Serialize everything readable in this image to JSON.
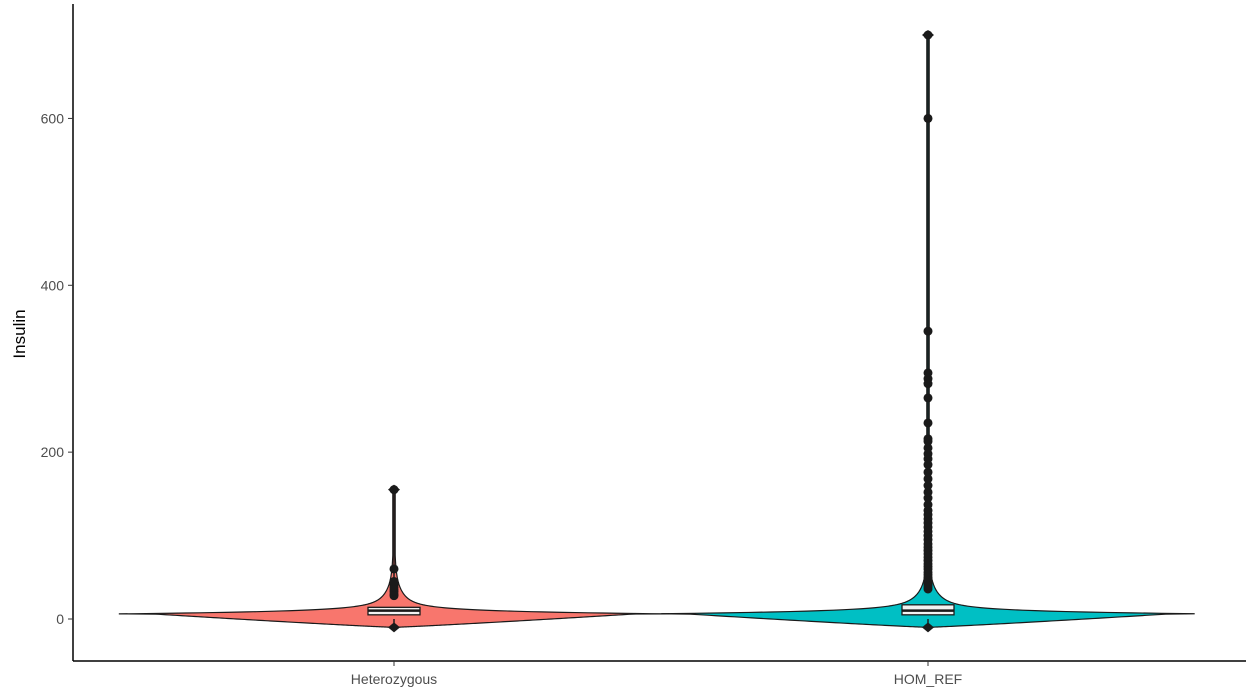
{
  "chart_data": {
    "type": "violin",
    "title": "",
    "xlabel": "",
    "ylabel": "Insulin",
    "ylim": [
      -50,
      700
    ],
    "yticks": [
      0,
      200,
      400,
      600
    ],
    "categories": [
      "Heterozygous",
      "HOM_REF"
    ],
    "colors": {
      "Heterozygous": "#F8766D",
      "HOM_REF": "#00BFC4"
    },
    "groups": [
      {
        "name": "Heterozygous",
        "box": {
          "min": 0,
          "q1": 5,
          "median": 10,
          "q3": 14,
          "max": 26
        },
        "violin_range": [
          -10,
          155
        ],
        "outliers": [
          28,
          30,
          33,
          35,
          38,
          41,
          43,
          45,
          60,
          155
        ]
      },
      {
        "name": "HOM_REF",
        "box": {
          "min": 0,
          "q1": 5,
          "median": 10,
          "q3": 17,
          "max": 35
        },
        "violin_range": [
          -10,
          700
        ],
        "outliers": [
          36,
          38,
          40,
          42,
          45,
          48,
          50,
          53,
          56,
          60,
          63,
          66,
          70,
          74,
          78,
          82,
          86,
          90,
          95,
          100,
          105,
          110,
          115,
          120,
          125,
          130,
          137,
          145,
          152,
          160,
          168,
          176,
          185,
          192,
          198,
          205,
          213,
          216,
          235,
          265,
          282,
          288,
          295,
          345,
          600,
          700
        ]
      }
    ]
  }
}
